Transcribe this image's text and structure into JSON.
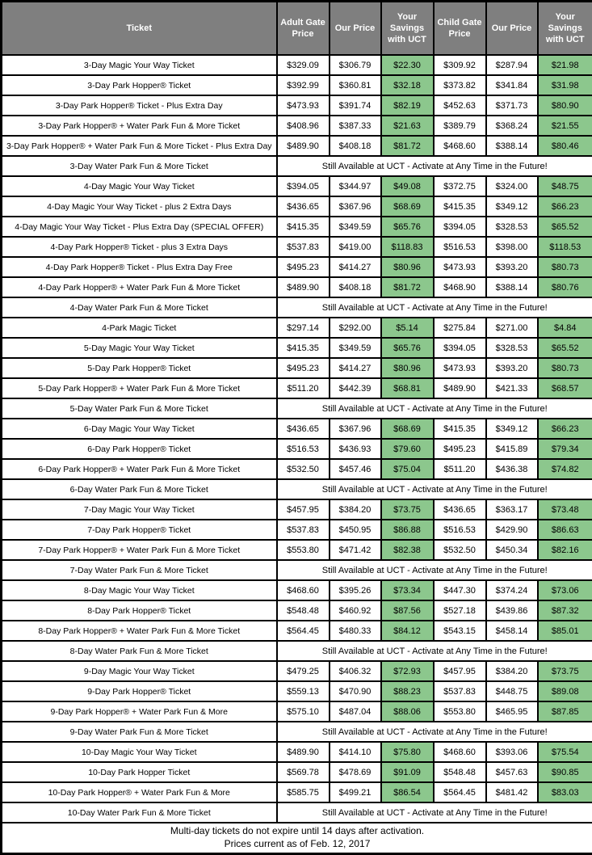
{
  "colors": {
    "header_bg": "#7f7f7f",
    "header_text": "#ffffff",
    "savings_bg": "#8cc78d",
    "border": "#000000",
    "row_bg": "#ffffff"
  },
  "table": {
    "columns": [
      "Ticket",
      "Adult Gate Price",
      "Our Price",
      "Your Savings with UCT",
      "Child Gate Price",
      "Our Price",
      "Your Savings with UCT"
    ],
    "availability_note": "Still Available at UCT - Activate at Any Time in the Future!",
    "rows": [
      {
        "ticket": "3-Day Magic Your Way Ticket",
        "adult_gate": "$329.09",
        "adult_our": "$306.79",
        "adult_savings": "$22.30",
        "child_gate": "$309.92",
        "child_our": "$287.94",
        "child_savings": "$21.98"
      },
      {
        "ticket": "3-Day Park Hopper® Ticket",
        "adult_gate": "$392.99",
        "adult_our": "$360.81",
        "adult_savings": "$32.18",
        "child_gate": "$373.82",
        "child_our": "$341.84",
        "child_savings": "$31.98"
      },
      {
        "ticket": "3-Day Park Hopper® Ticket - Plus Extra Day",
        "adult_gate": "$473.93",
        "adult_our": "$391.74",
        "adult_savings": "$82.19",
        "child_gate": "$452.63",
        "child_our": "$371.73",
        "child_savings": "$80.90"
      },
      {
        "ticket": "3-Day Park Hopper® + Water Park Fun & More Ticket",
        "adult_gate": "$408.96",
        "adult_our": "$387.33",
        "adult_savings": "$21.63",
        "child_gate": "$389.79",
        "child_our": "$368.24",
        "child_savings": "$21.55"
      },
      {
        "ticket": "3-Day Park Hopper® + Water Park Fun & More Ticket - Plus Extra Day",
        "adult_gate": "$489.90",
        "adult_our": "$408.18",
        "adult_savings": "$81.72",
        "child_gate": "$468.60",
        "child_our": "$388.14",
        "child_savings": "$80.46"
      },
      {
        "ticket": "3-Day Water Park Fun & More Ticket",
        "note": true
      },
      {
        "ticket": "4-Day Magic Your Way Ticket",
        "adult_gate": "$394.05",
        "adult_our": "$344.97",
        "adult_savings": "$49.08",
        "child_gate": "$372.75",
        "child_our": "$324.00",
        "child_savings": "$48.75"
      },
      {
        "ticket": "4-Day Magic Your Way Ticket - plus 2 Extra Days",
        "adult_gate": "$436.65",
        "adult_our": "$367.96",
        "adult_savings": "$68.69",
        "child_gate": "$415.35",
        "child_our": "$349.12",
        "child_savings": "$66.23"
      },
      {
        "ticket": "4-Day Magic Your Way Ticket - Plus Extra Day (SPECIAL OFFER)",
        "adult_gate": "$415.35",
        "adult_our": "$349.59",
        "adult_savings": "$65.76",
        "child_gate": "$394.05",
        "child_our": "$328.53",
        "child_savings": "$65.52"
      },
      {
        "ticket": "4-Day Park Hopper® Ticket - plus 3 Extra Days",
        "adult_gate": "$537.83",
        "adult_our": "$419.00",
        "adult_savings": "$118.83",
        "child_gate": "$516.53",
        "child_our": "$398.00",
        "child_savings": "$118.53"
      },
      {
        "ticket": "4-Day Park Hopper® Ticket - Plus Extra Day Free",
        "adult_gate": "$495.23",
        "adult_our": "$414.27",
        "adult_savings": "$80.96",
        "child_gate": "$473.93",
        "child_our": "$393.20",
        "child_savings": "$80.73"
      },
      {
        "ticket": "4-Day Park Hopper® + Water Park Fun & More Ticket",
        "adult_gate": "$489.90",
        "adult_our": "$408.18",
        "adult_savings": "$81.72",
        "child_gate": "$468.90",
        "child_our": "$388.14",
        "child_savings": "$80.76"
      },
      {
        "ticket": "4-Day Water Park Fun & More Ticket",
        "note": true
      },
      {
        "ticket": "4-Park Magic Ticket",
        "adult_gate": "$297.14",
        "adult_our": "$292.00",
        "adult_savings": "$5.14",
        "child_gate": "$275.84",
        "child_our": "$271.00",
        "child_savings": "$4.84"
      },
      {
        "ticket": "5-Day Magic Your Way Ticket",
        "adult_gate": "$415.35",
        "adult_our": "$349.59",
        "adult_savings": "$65.76",
        "child_gate": "$394.05",
        "child_our": "$328.53",
        "child_savings": "$65.52"
      },
      {
        "ticket": "5-Day Park Hopper® Ticket",
        "adult_gate": "$495.23",
        "adult_our": "$414.27",
        "adult_savings": "$80.96",
        "child_gate": "$473.93",
        "child_our": "$393.20",
        "child_savings": "$80.73"
      },
      {
        "ticket": "5-Day Park Hopper® + Water Park Fun & More Ticket",
        "adult_gate": "$511.20",
        "adult_our": "$442.39",
        "adult_savings": "$68.81",
        "child_gate": "$489.90",
        "child_our": "$421.33",
        "child_savings": "$68.57"
      },
      {
        "ticket": "5-Day Water Park Fun & More Ticket",
        "note": true
      },
      {
        "ticket": "6-Day Magic Your Way Ticket",
        "adult_gate": "$436.65",
        "adult_our": "$367.96",
        "adult_savings": "$68.69",
        "child_gate": "$415.35",
        "child_our": "$349.12",
        "child_savings": "$66.23"
      },
      {
        "ticket": "6-Day Park Hopper® Ticket",
        "adult_gate": "$516.53",
        "adult_our": "$436.93",
        "adult_savings": "$79.60",
        "child_gate": "$495.23",
        "child_our": "$415.89",
        "child_savings": "$79.34"
      },
      {
        "ticket": "6-Day Park Hopper® + Water Park Fun & More Ticket",
        "adult_gate": "$532.50",
        "adult_our": "$457.46",
        "adult_savings": "$75.04",
        "child_gate": "$511.20",
        "child_our": "$436.38",
        "child_savings": "$74.82"
      },
      {
        "ticket": "6-Day Water Park Fun & More Ticket",
        "note": true
      },
      {
        "ticket": "7-Day Magic Your Way Ticket",
        "adult_gate": "$457.95",
        "adult_our": "$384.20",
        "adult_savings": "$73.75",
        "child_gate": "$436.65",
        "child_our": "$363.17",
        "child_savings": "$73.48"
      },
      {
        "ticket": "7-Day Park Hopper® Ticket",
        "adult_gate": "$537.83",
        "adult_our": "$450.95",
        "adult_savings": "$86.88",
        "child_gate": "$516.53",
        "child_our": "$429.90",
        "child_savings": "$86.63"
      },
      {
        "ticket": "7-Day Park Hopper® + Water Park Fun & More Ticket",
        "adult_gate": "$553.80",
        "adult_our": "$471.42",
        "adult_savings": "$82.38",
        "child_gate": "$532.50",
        "child_our": "$450.34",
        "child_savings": "$82.16"
      },
      {
        "ticket": "7-Day Water Park Fun & More Ticket",
        "note": true
      },
      {
        "ticket": "8-Day Magic Your Way Ticket",
        "adult_gate": "$468.60",
        "adult_our": "$395.26",
        "adult_savings": "$73.34",
        "child_gate": "$447.30",
        "child_our": "$374.24",
        "child_savings": "$73.06"
      },
      {
        "ticket": "8-Day Park Hopper® Ticket",
        "adult_gate": "$548.48",
        "adult_our": "$460.92",
        "adult_savings": "$87.56",
        "child_gate": "$527.18",
        "child_our": "$439.86",
        "child_savings": "$87.32"
      },
      {
        "ticket": "8-Day Park Hopper® + Water Park Fun & More Ticket",
        "adult_gate": "$564.45",
        "adult_our": "$480.33",
        "adult_savings": "$84.12",
        "child_gate": "$543.15",
        "child_our": "$458.14",
        "child_savings": "$85.01"
      },
      {
        "ticket": "8-Day Water Park Fun & More Ticket",
        "note": true
      },
      {
        "ticket": "9-Day Magic Your Way Ticket",
        "adult_gate": "$479.25",
        "adult_our": "$406.32",
        "adult_savings": "$72.93",
        "child_gate": "$457.95",
        "child_our": "$384.20",
        "child_savings": "$73.75"
      },
      {
        "ticket": "9-Day Park Hopper® Ticket",
        "adult_gate": "$559.13",
        "adult_our": "$470.90",
        "adult_savings": "$88.23",
        "child_gate": "$537.83",
        "child_our": "$448.75",
        "child_savings": "$89.08"
      },
      {
        "ticket": "9-Day Park Hopper® + Water Park Fun & More",
        "adult_gate": "$575.10",
        "adult_our": "$487.04",
        "adult_savings": "$88.06",
        "child_gate": "$553.80",
        "child_our": "$465.95",
        "child_savings": "$87.85"
      },
      {
        "ticket": "9-Day Water Park Fun & More Ticket",
        "note": true
      },
      {
        "ticket": "10-Day Magic Your Way Ticket",
        "adult_gate": "$489.90",
        "adult_our": "$414.10",
        "adult_savings": "$75.80",
        "child_gate": "$468.60",
        "child_our": "$393.06",
        "child_savings": "$75.54"
      },
      {
        "ticket": "10-Day Park Hopper Ticket",
        "adult_gate": "$569.78",
        "adult_our": "$478.69",
        "adult_savings": "$91.09",
        "child_gate": "$548.48",
        "child_our": "$457.63",
        "child_savings": "$90.85"
      },
      {
        "ticket": "10-Day Park Hopper® + Water Park Fun & More",
        "adult_gate": "$585.75",
        "adult_our": "$499.21",
        "adult_savings": "$86.54",
        "child_gate": "$564.45",
        "child_our": "$481.42",
        "child_savings": "$83.03"
      },
      {
        "ticket": "10-Day Water Park Fun & More Ticket",
        "note": true
      }
    ],
    "footer": {
      "line1": "Multi-day tickets do not expire until 14 days after activation.",
      "line2": "Prices current as of Feb. 12, 2017"
    }
  }
}
